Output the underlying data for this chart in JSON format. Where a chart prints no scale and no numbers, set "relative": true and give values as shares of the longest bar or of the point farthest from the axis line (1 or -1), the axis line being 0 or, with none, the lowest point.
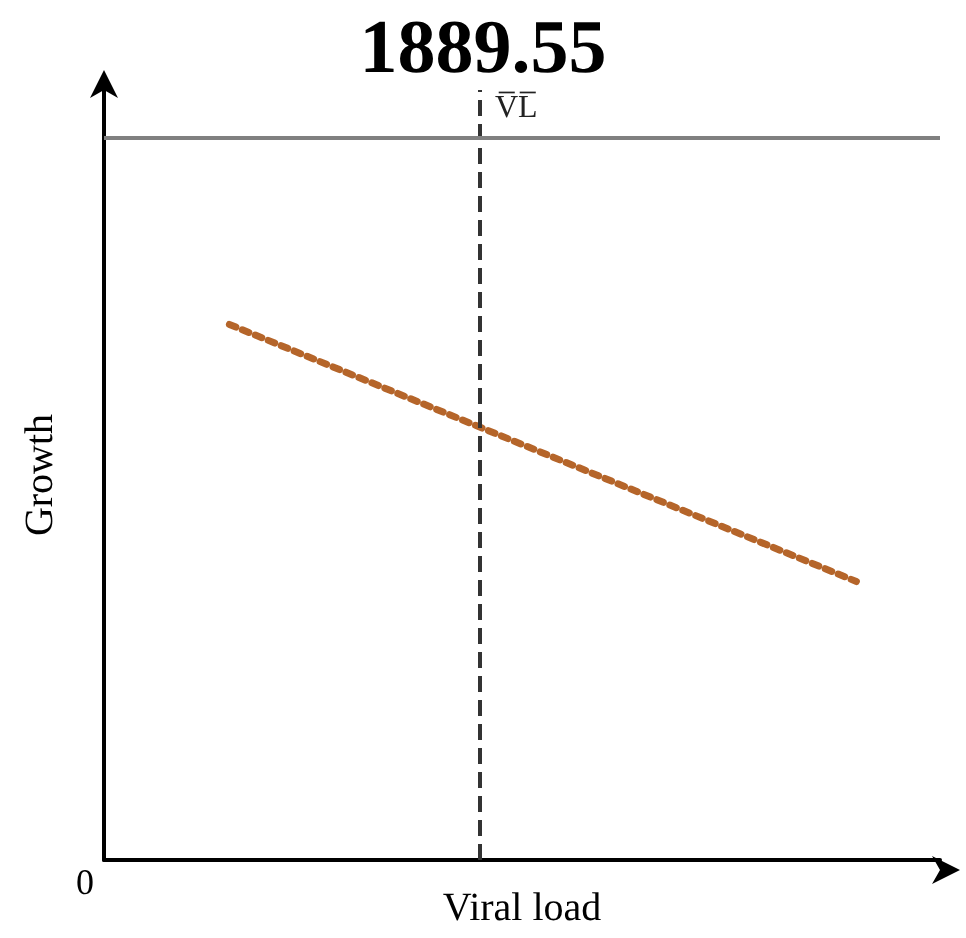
{
  "chart_data": {
    "type": "line",
    "title": "1889.55",
    "xlabel": "Viral load",
    "ylabel": "Growth",
    "relative": true,
    "categories": [
      null,
      null,
      null,
      null,
      null,
      null,
      null,
      null,
      null,
      null,
      null,
      null,
      null,
      null,
      null,
      null,
      null,
      null,
      null,
      null,
      null
    ],
    "series": [
      {
        "color": "#b5652a",
        "values": [
          null,
          null,
          null,
          1,
          null,
          null,
          null,
          null,
          null,
          null,
          null,
          null,
          null,
          null,
          null,
          null,
          null,
          null,
          0.52,
          null,
          null
        ]
      }
    ],
    "line_style": "dotted",
    "marker": "none",
    "grid": false,
    "ref_lines": [
      {
        "axis": "y",
        "value": 1.35,
        "color": "#808080",
        "line_style": "solid"
      }
    ],
    "annotations": [
      "0",
      "V̅L̅"
    ]
  }
}
